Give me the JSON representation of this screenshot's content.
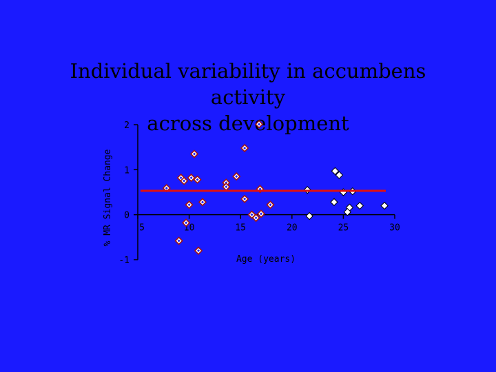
{
  "slide": {
    "title_line1": "Individual variability in accumbens activity",
    "title_line2": "across development"
  },
  "chart_data": {
    "type": "scatter",
    "xlabel": "Age (years)",
    "ylabel": "% MR Signal Change",
    "xlim": [
      5,
      30
    ],
    "ylim": [
      -1,
      2
    ],
    "xticks": [
      5,
      10,
      15,
      20,
      25,
      30
    ],
    "yticks": [
      -1,
      0,
      1,
      2
    ],
    "grid": false,
    "colors": {
      "background": "#1a1aff",
      "marker_fill": "#ffffff",
      "marker_stroke": "#000000",
      "outline_marker_stroke": "#a01414",
      "reference_line": "#e01010"
    },
    "reference_line": {
      "y": 0.53
    },
    "series": [
      {
        "marker": "diamond-outlined",
        "points": [
          [
            7.8,
            0.59
          ],
          [
            9.2,
            0.82
          ],
          [
            9.5,
            0.75
          ],
          [
            9.7,
            -0.18
          ],
          [
            9.0,
            -0.58
          ],
          [
            10.2,
            0.82
          ],
          [
            10.8,
            0.78
          ],
          [
            10.5,
            1.35
          ],
          [
            11.3,
            0.28
          ],
          [
            10.0,
            0.22
          ],
          [
            10.9,
            -0.8
          ],
          [
            13.6,
            0.71
          ],
          [
            13.6,
            0.62
          ],
          [
            14.6,
            0.85
          ],
          [
            15.4,
            1.48
          ],
          [
            15.4,
            0.35
          ],
          [
            16.8,
            2.01
          ],
          [
            16.9,
            0.57
          ],
          [
            16.1,
            0.0
          ],
          [
            16.5,
            -0.07
          ],
          [
            17.0,
            0.02
          ],
          [
            17.9,
            0.22
          ]
        ]
      },
      {
        "marker": "diamond-filled",
        "points": [
          [
            21.5,
            0.55
          ],
          [
            21.7,
            -0.03
          ],
          [
            24.2,
            0.97
          ],
          [
            24.6,
            0.88
          ],
          [
            24.1,
            0.28
          ],
          [
            25.0,
            0.5
          ],
          [
            25.9,
            0.52
          ],
          [
            25.6,
            0.16
          ],
          [
            25.4,
            0.06
          ],
          [
            26.6,
            0.2
          ],
          [
            29.0,
            0.2
          ]
        ]
      }
    ]
  }
}
